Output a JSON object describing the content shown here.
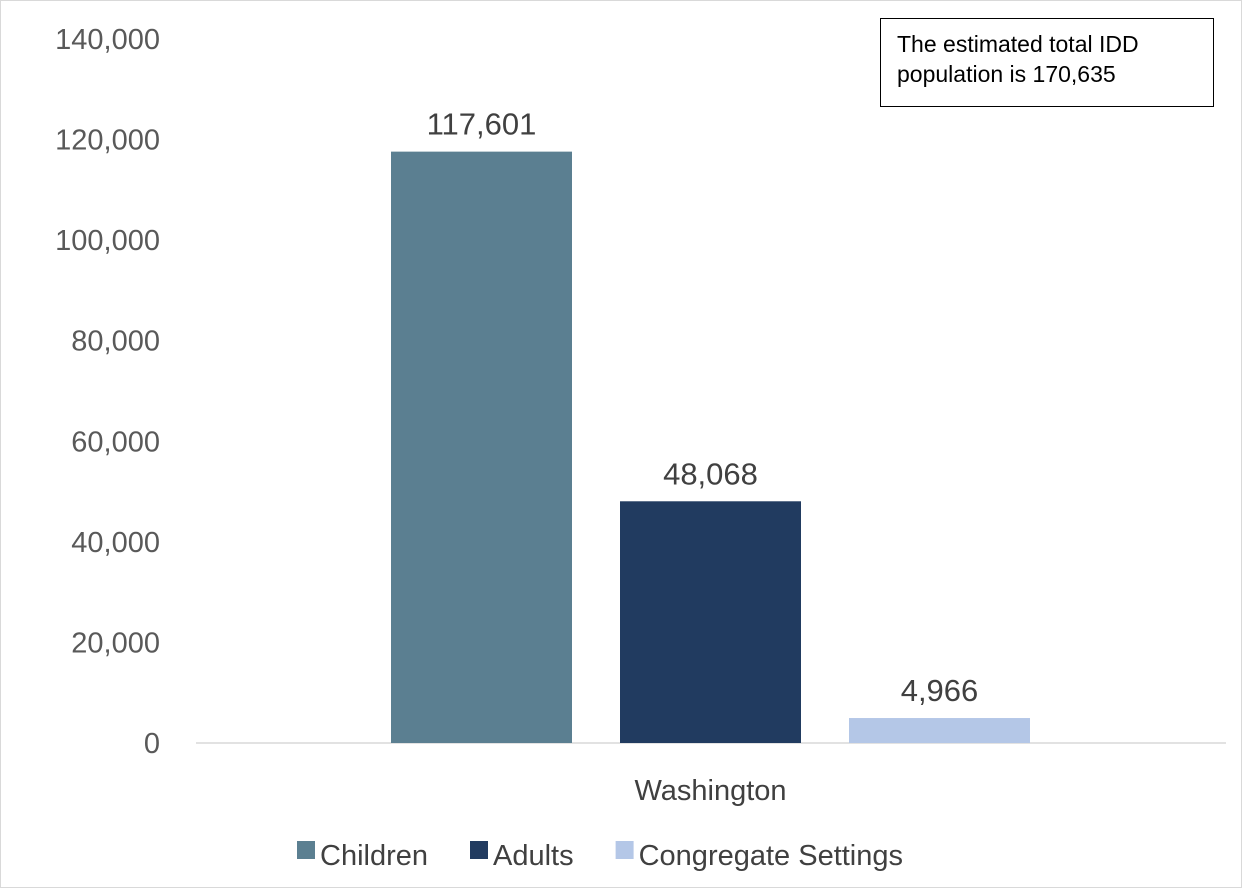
{
  "chart_data": {
    "type": "bar",
    "categories": [
      "Washington"
    ],
    "series": [
      {
        "name": "Children",
        "values": [
          117601
        ],
        "color": "#5b7f91",
        "label": "117,601"
      },
      {
        "name": "Adults",
        "values": [
          48068
        ],
        "color": "#213b60",
        "label": "48,068"
      },
      {
        "name": "Congregate Settings",
        "values": [
          4966
        ],
        "color": "#b4c7e7",
        "label": "4,966"
      }
    ],
    "ylim": [
      0,
      140000
    ],
    "yticks": [
      0,
      20000,
      40000,
      60000,
      80000,
      100000,
      120000,
      140000
    ],
    "ytick_labels": [
      "0",
      "20,000",
      "40,000",
      "60,000",
      "80,000",
      "100,000",
      "120,000",
      "140,000"
    ],
    "grid": false,
    "legend_position": "bottom",
    "annotation": "The estimated total IDD population is 170,635"
  }
}
